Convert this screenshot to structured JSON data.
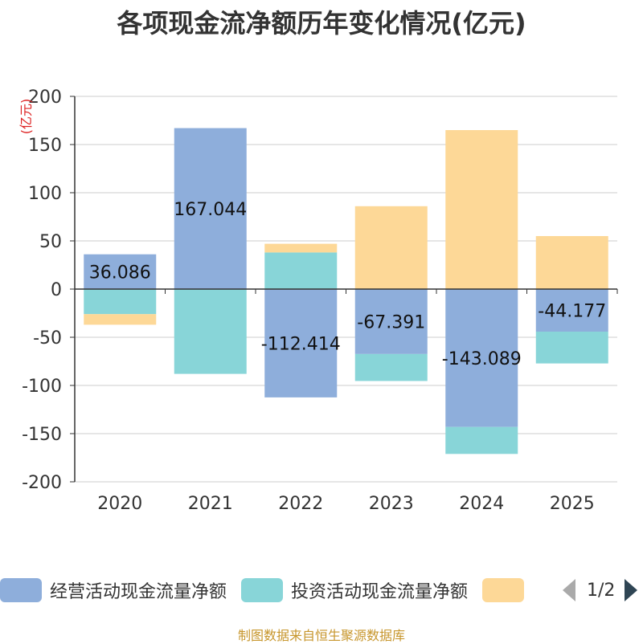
{
  "chart_data": {
    "type": "bar",
    "stacked": true,
    "title": "各项现金流净额历年变化情况(亿元)",
    "ylabel": "(亿元)",
    "ylim": [
      -200,
      200
    ],
    "yticks": [
      200,
      150,
      100,
      50,
      0,
      -50,
      -100,
      -150,
      -200
    ],
    "categories": [
      "2020",
      "2021",
      "2022",
      "2023",
      "2024",
      "2025"
    ],
    "series": [
      {
        "name": "经营活动现金流量净额",
        "color": "#8eaedb",
        "values": [
          36.086,
          167.044,
          -112.414,
          -67.391,
          -143.089,
          -44.177
        ]
      },
      {
        "name": "投资活动现金流量净额",
        "color": "#88d5d8",
        "values": [
          -26.0,
          -88.0,
          38.0,
          -28.0,
          -28.0,
          -33.0
        ]
      },
      {
        "name": "",
        "color": "#fdd897",
        "values": [
          -11.0,
          0,
          9.0,
          86.0,
          165.0,
          55.0
        ]
      }
    ],
    "data_labels": [
      "36.086",
      "167.044",
      "-112.414",
      "-67.391",
      "-143.089",
      "-44.177"
    ],
    "legend_position": "bottom"
  },
  "legend": {
    "items": [
      {
        "label": "经营活动现金流量净额",
        "color": "#8eaedb"
      },
      {
        "label": "投资活动现金流量净额",
        "color": "#88d5d8"
      },
      {
        "label": "",
        "color": "#fdd897"
      }
    ],
    "pager_text": "1/2"
  },
  "footer": {
    "source": "制图数据来自恒生聚源数据库"
  }
}
